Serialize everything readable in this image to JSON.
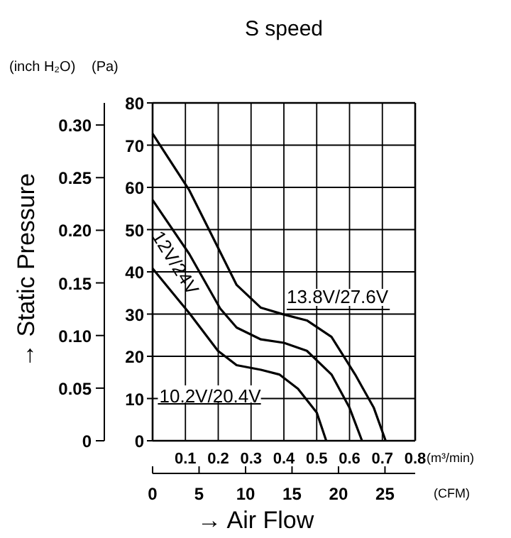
{
  "chart_data": {
    "type": "line",
    "title": "S speed",
    "xlabel": "(m³/min)",
    "x2label": "(CFM)",
    "ylabel": "(Pa)",
    "y2label": "(inch H₂O)",
    "annotations": [
      "→ Static Pressure",
      "→ Air Flow"
    ],
    "xlim": [
      0,
      0.8
    ],
    "xticks": [
      0.1,
      0.2,
      0.3,
      0.4,
      0.5,
      0.6,
      0.7,
      0.8
    ],
    "x2lim": [
      0,
      28.25
    ],
    "x2ticks": [
      0,
      5,
      10,
      15,
      20,
      25
    ],
    "ylim": [
      0,
      80
    ],
    "yticks": [
      0,
      10,
      20,
      30,
      40,
      50,
      60,
      70,
      80
    ],
    "y2lim": [
      0,
      0.321
    ],
    "y2ticks": [
      0,
      0.05,
      {
        "value": 0.1,
        "label": "0.10"
      },
      0.15,
      {
        "value": 0.2,
        "label": "0.20"
      },
      0.25,
      {
        "value": 0.3,
        "label": "0.30"
      }
    ],
    "grid": true,
    "legend": false,
    "marker": "none",
    "line_style": "solid",
    "series": [
      {
        "name": "13.8V/27.6V",
        "color": "#000000",
        "x": [
          0,
          0.112,
          0.184,
          0.256,
          0.33,
          0.4,
          0.47,
          0.545,
          0.617,
          0.674,
          0.71
        ],
        "values": [
          72.7,
          59.3,
          48.1,
          36.9,
          31.5,
          29.9,
          28.5,
          24.6,
          15.7,
          7.8,
          0
        ]
      },
      {
        "name": "12V/24V",
        "color": "#000000",
        "x": [
          0,
          0.112,
          0.206,
          0.256,
          0.33,
          0.4,
          0.47,
          0.545,
          0.6,
          0.638
        ],
        "values": [
          57.0,
          44.2,
          31.3,
          26.8,
          24.0,
          23.2,
          21.3,
          15.7,
          7.8,
          0
        ]
      },
      {
        "name": "10.2V/20.4V",
        "color": "#000000",
        "x": [
          0,
          0.112,
          0.199,
          0.256,
          0.33,
          0.386,
          0.443,
          0.5,
          0.529
        ],
        "values": [
          40.8,
          30.2,
          21.3,
          17.9,
          16.8,
          15.7,
          12.3,
          6.7,
          0
        ]
      }
    ]
  }
}
